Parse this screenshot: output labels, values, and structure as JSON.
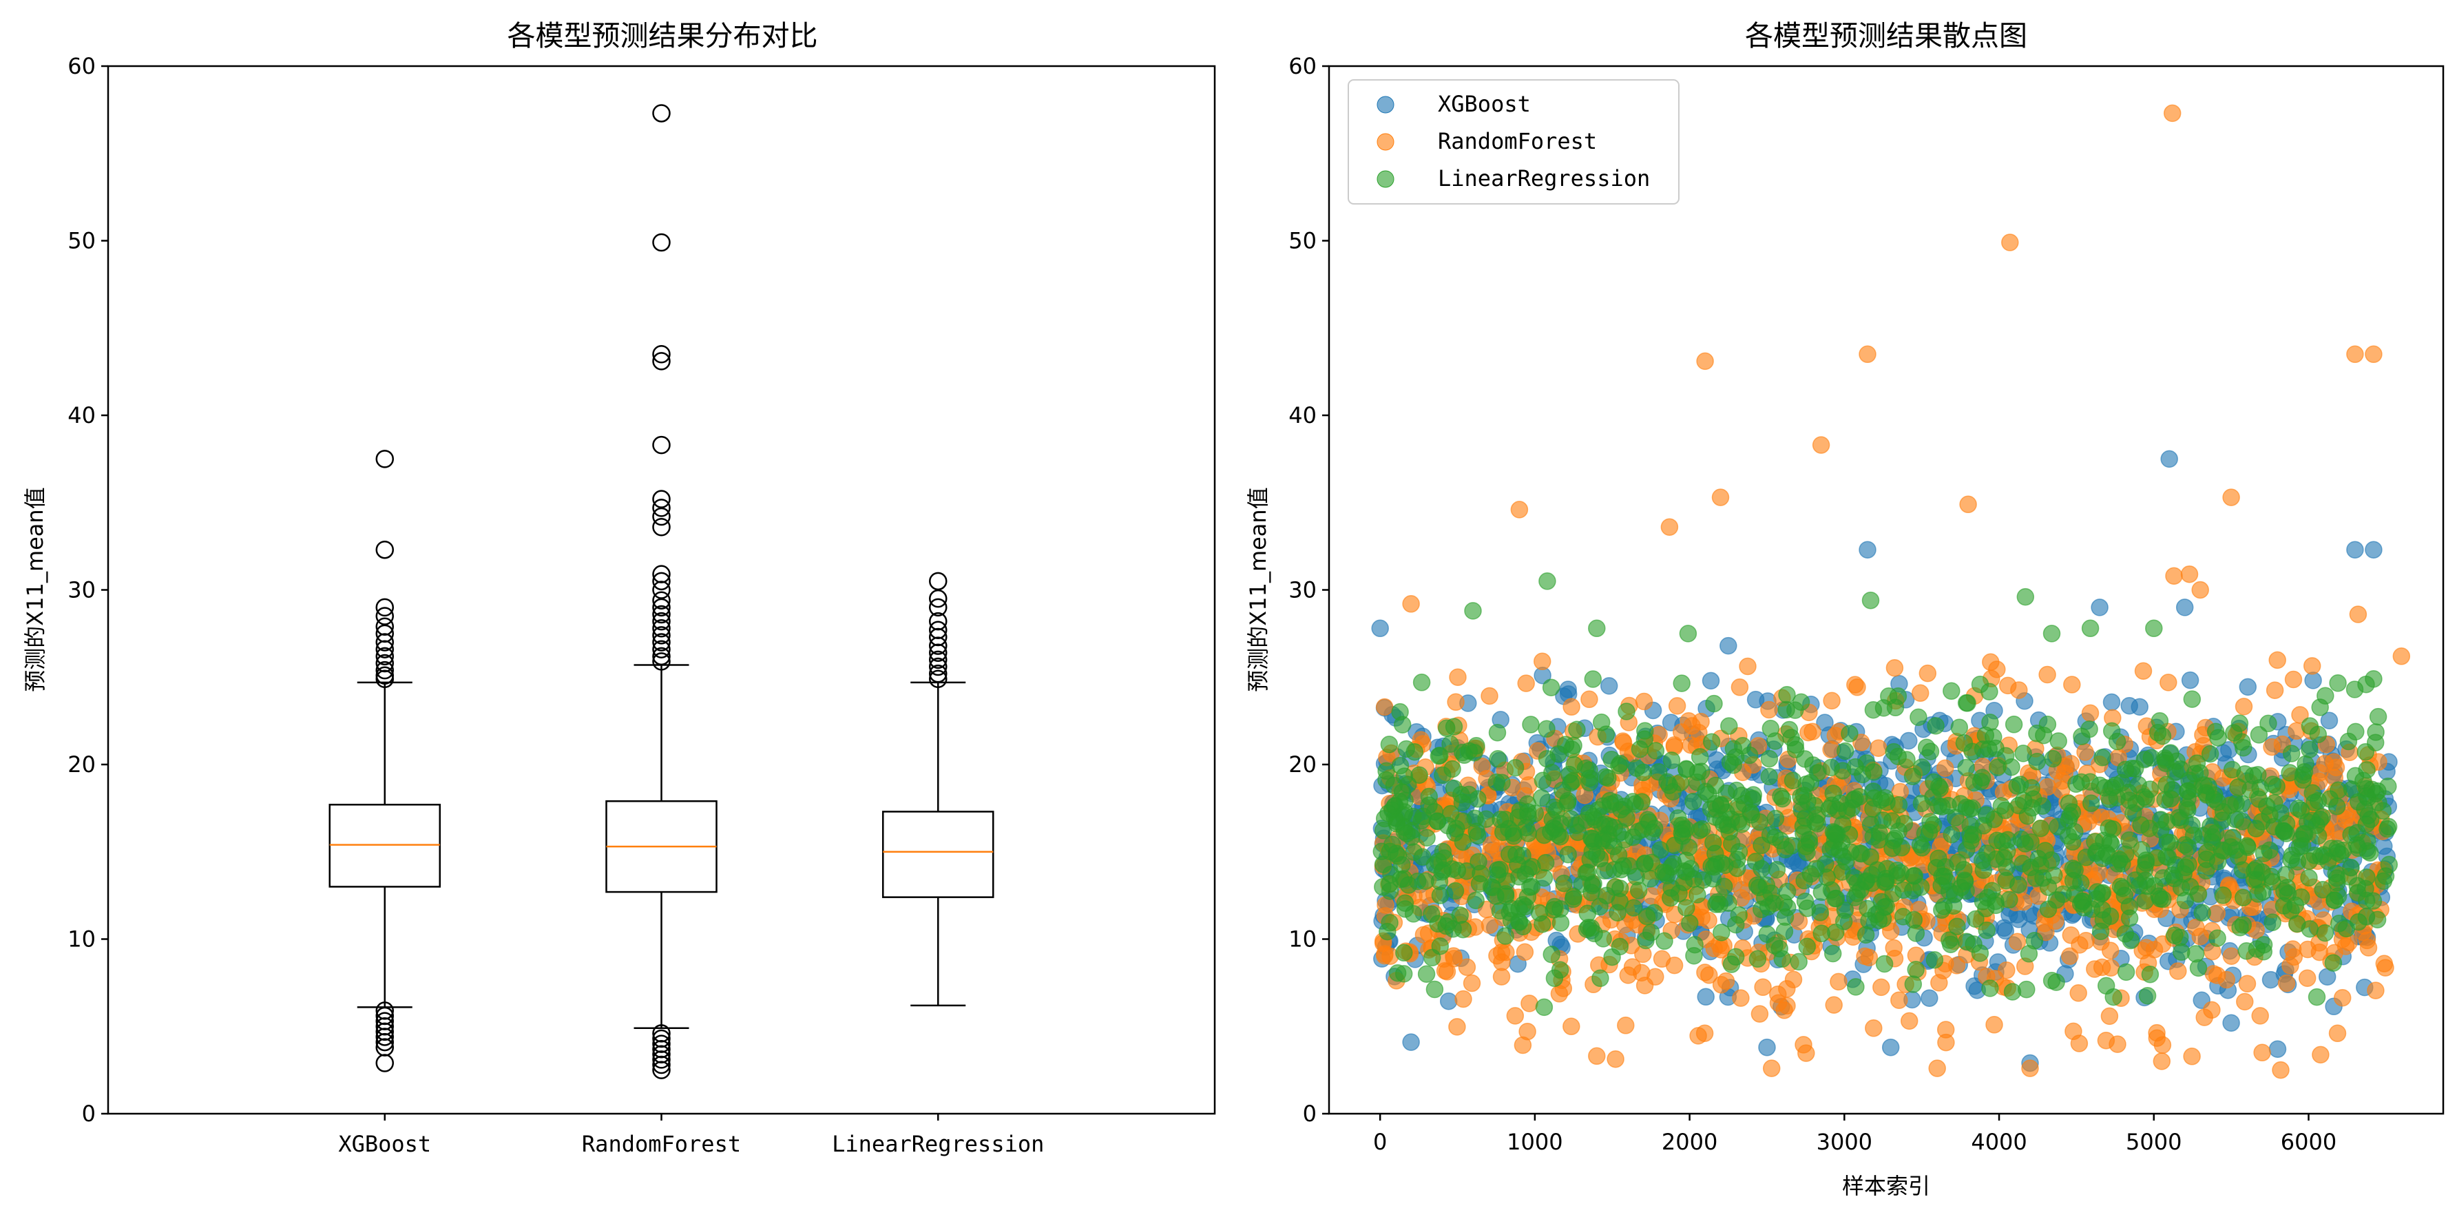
{
  "chart_data": [
    {
      "type": "box",
      "title": "各模型预测结果分布对比",
      "ylabel": "预测的X11_mean值",
      "ylim": [
        0,
        60
      ],
      "yticks": [
        0,
        10,
        20,
        30,
        40,
        50,
        60
      ],
      "categories": [
        "XGBoost",
        "RandomForest",
        "LinearRegression"
      ],
      "boxes": [
        {
          "name": "XGBoost",
          "whisker_low": 6.1,
          "q1": 13.0,
          "median": 15.4,
          "q3": 17.7,
          "whisker_high": 24.7,
          "outliers": [
            37.5,
            32.3,
            29.0,
            28.5,
            27.9,
            27.5,
            27.0,
            26.6,
            26.2,
            25.8,
            25.4,
            25.1,
            24.9,
            5.9,
            5.6,
            5.3,
            5.0,
            4.7,
            4.4,
            4.1,
            3.8,
            2.9
          ]
        },
        {
          "name": "RandomForest",
          "whisker_low": 4.9,
          "q1": 12.7,
          "median": 15.3,
          "q3": 17.9,
          "whisker_high": 25.7,
          "outliers": [
            57.3,
            49.9,
            43.5,
            43.1,
            38.3,
            35.2,
            34.7,
            34.2,
            33.6,
            30.9,
            30.5,
            30.0,
            29.4,
            29.0,
            28.6,
            28.2,
            27.8,
            27.4,
            27.0,
            26.6,
            26.2,
            25.9,
            4.6,
            4.3,
            4.0,
            3.7,
            3.4,
            3.1,
            2.8,
            2.5
          ]
        },
        {
          "name": "LinearRegression",
          "whisker_low": 6.2,
          "q1": 12.4,
          "median": 15.0,
          "q3": 17.3,
          "whisker_high": 24.7,
          "outliers": [
            30.5,
            29.5,
            29.0,
            28.2,
            27.7,
            27.3,
            26.8,
            26.4,
            26.0,
            25.6,
            25.2,
            24.9
          ]
        }
      ],
      "colors": {
        "box": "#000000",
        "median": "#ff7f0e"
      }
    },
    {
      "type": "scatter",
      "title": "各模型预测结果散点图",
      "xlabel": "样本索引",
      "ylabel": "预测的X11_mean值",
      "xlim": [
        -330,
        6870
      ],
      "ylim": [
        0,
        60
      ],
      "xticks": [
        0,
        1000,
        2000,
        3000,
        4000,
        5000,
        6000
      ],
      "yticks": [
        0,
        10,
        20,
        30,
        40,
        50,
        60
      ],
      "legend": {
        "placement": "upper-left",
        "entries": [
          {
            "name": "XGBoost",
            "color": "#1f77b4"
          },
          {
            "name": "RandomForest",
            "color": "#ff7f0e"
          },
          {
            "name": "LinearRegression",
            "color": "#2ca02c"
          }
        ]
      },
      "series": [
        {
          "name": "XGBoost",
          "color": "#1f77b4",
          "notable_points": [
            [
              0,
              27.8
            ],
            [
              5100,
              37.5
            ],
            [
              3150,
              32.3
            ],
            [
              6300,
              32.3
            ],
            [
              6420,
              32.3
            ],
            [
              4650,
              29.0
            ],
            [
              5200,
              29.0
            ],
            [
              1050,
              25.1
            ],
            [
              2250,
              26.8
            ],
            [
              4200,
              2.9
            ],
            [
              200,
              4.1
            ],
            [
              3300,
              3.8
            ],
            [
              5800,
              3.7
            ],
            [
              2500,
              3.8
            ],
            [
              5500,
              5.2
            ]
          ],
          "bulk_range": {
            "x": [
              0,
              6520
            ],
            "y": [
              6,
              25
            ]
          }
        },
        {
          "name": "RandomForest",
          "color": "#ff7f0e",
          "notable_points": [
            [
              5120,
              57.3
            ],
            [
              4070,
              49.9
            ],
            [
              3150,
              43.5
            ],
            [
              6300,
              43.5
            ],
            [
              6420,
              43.5
            ],
            [
              2100,
              43.1
            ],
            [
              2850,
              38.3
            ],
            [
              5500,
              35.3
            ],
            [
              2200,
              35.3
            ],
            [
              3800,
              34.9
            ],
            [
              900,
              34.6
            ],
            [
              1870,
              33.6
            ],
            [
              5130,
              30.8
            ],
            [
              5230,
              30.9
            ],
            [
              5300,
              30.0
            ],
            [
              200,
              29.2
            ],
            [
              6320,
              28.6
            ],
            [
              2530,
              2.6
            ],
            [
              3600,
              2.6
            ],
            [
              4200,
              2.6
            ],
            [
              5820,
              2.5
            ],
            [
              1400,
              3.3
            ],
            [
              5700,
              3.5
            ],
            [
              6600,
              26.2
            ]
          ],
          "bulk_range": {
            "x": [
              0,
              6520
            ],
            "y": [
              3,
              26
            ]
          }
        },
        {
          "name": "LinearRegression",
          "color": "#2ca02c",
          "notable_points": [
            [
              1080,
              30.5
            ],
            [
              4170,
              29.6
            ],
            [
              3170,
              29.4
            ],
            [
              600,
              28.8
            ],
            [
              4590,
              27.8
            ],
            [
              1990,
              27.5
            ],
            [
              5000,
              27.8
            ],
            [
              4340,
              27.5
            ],
            [
              1400,
              27.8
            ],
            [
              6420,
              24.9
            ],
            [
              1060,
              6.1
            ],
            [
              300,
              8.0
            ]
          ],
          "bulk_range": {
            "x": [
              0,
              6520
            ],
            "y": [
              6.5,
              25
            ]
          }
        }
      ]
    }
  ]
}
